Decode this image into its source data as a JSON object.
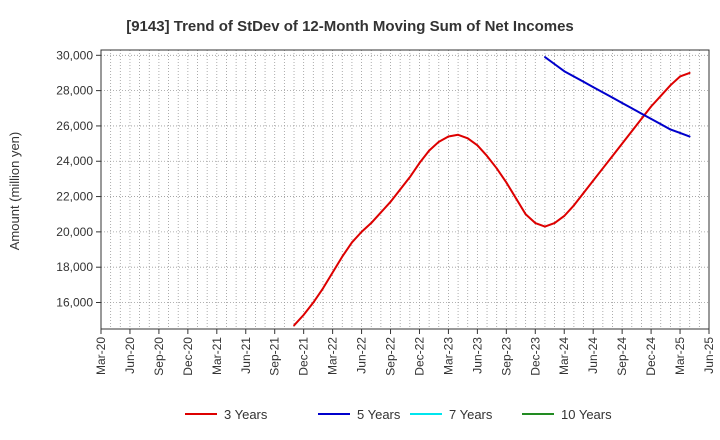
{
  "chart_data": {
    "type": "line",
    "title": "[9143]  Trend of StDev of 12-Month Moving Sum of Net Incomes",
    "xlabel": "",
    "ylabel": "Amount (million yen)",
    "x_tick_labels": [
      "Mar-20",
      "Jun-20",
      "Sep-20",
      "Dec-20",
      "Mar-21",
      "Jun-21",
      "Sep-21",
      "Dec-21",
      "Mar-22",
      "Jun-22",
      "Sep-22",
      "Dec-22",
      "Mar-23",
      "Jun-23",
      "Sep-23",
      "Dec-23",
      "Mar-24",
      "Jun-24",
      "Sep-24",
      "Dec-24",
      "Mar-25",
      "Jun-25"
    ],
    "y_tick_labels": [
      "16,000",
      "18,000",
      "20,000",
      "22,000",
      "24,000",
      "26,000",
      "28,000",
      "30,000"
    ],
    "ylim": [
      14500,
      30300
    ],
    "grid": true,
    "legend_position": "bottom",
    "series": [
      {
        "name": "3 Years",
        "color": "#dd0000",
        "points": [
          [
            "Nov-21",
            14700
          ],
          [
            "Dec-21",
            15300
          ],
          [
            "Jan-22",
            16000
          ],
          [
            "Feb-22",
            16800
          ],
          [
            "Mar-22",
            17700
          ],
          [
            "Apr-22",
            18600
          ],
          [
            "May-22",
            19400
          ],
          [
            "Jun-22",
            20000
          ],
          [
            "Jul-22",
            20500
          ],
          [
            "Aug-22",
            21100
          ],
          [
            "Sep-22",
            21700
          ],
          [
            "Oct-22",
            22400
          ],
          [
            "Nov-22",
            23100
          ],
          [
            "Dec-22",
            23900
          ],
          [
            "Jan-23",
            24600
          ],
          [
            "Feb-23",
            25100
          ],
          [
            "Mar-23",
            25400
          ],
          [
            "Apr-23",
            25500
          ],
          [
            "May-23",
            25300
          ],
          [
            "Jun-23",
            24900
          ],
          [
            "Jul-23",
            24300
          ],
          [
            "Aug-23",
            23600
          ],
          [
            "Sep-23",
            22800
          ],
          [
            "Oct-23",
            21900
          ],
          [
            "Nov-23",
            21000
          ],
          [
            "Dec-23",
            20500
          ],
          [
            "Jan-24",
            20300
          ],
          [
            "Feb-24",
            20500
          ],
          [
            "Mar-24",
            20900
          ],
          [
            "Apr-24",
            21500
          ],
          [
            "May-24",
            22200
          ],
          [
            "Jun-24",
            22900
          ],
          [
            "Jul-24",
            23600
          ],
          [
            "Aug-24",
            24300
          ],
          [
            "Sep-24",
            25000
          ],
          [
            "Oct-24",
            25700
          ],
          [
            "Nov-24",
            26400
          ],
          [
            "Dec-24",
            27100
          ],
          [
            "Jan-25",
            27700
          ],
          [
            "Feb-25",
            28300
          ],
          [
            "Mar-25",
            28800
          ],
          [
            "Apr-25",
            29000
          ]
        ]
      },
      {
        "name": "5 Years",
        "color": "#0000cc",
        "points": [
          [
            "Jan-24",
            29900
          ],
          [
            "Feb-24",
            29500
          ],
          [
            "Mar-24",
            29100
          ],
          [
            "Apr-24",
            28800
          ],
          [
            "May-24",
            28500
          ],
          [
            "Jun-24",
            28200
          ],
          [
            "Jul-24",
            27900
          ],
          [
            "Aug-24",
            27600
          ],
          [
            "Sep-24",
            27300
          ],
          [
            "Oct-24",
            27000
          ],
          [
            "Nov-24",
            26700
          ],
          [
            "Dec-24",
            26400
          ],
          [
            "Jan-25",
            26100
          ],
          [
            "Feb-25",
            25800
          ],
          [
            "Mar-25",
            25600
          ],
          [
            "Apr-25",
            25400
          ]
        ]
      },
      {
        "name": "7 Years",
        "color": "#00e5ee",
        "points": []
      },
      {
        "name": "10 Years",
        "color": "#228b22",
        "points": []
      }
    ]
  }
}
